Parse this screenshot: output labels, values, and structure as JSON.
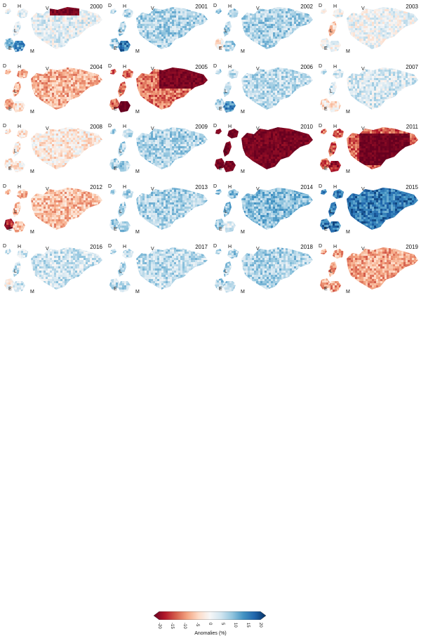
{
  "figure": {
    "region_labels": [
      "D",
      "H",
      "V",
      "L",
      "E",
      "M"
    ],
    "panels": [
      {
        "year": "2000",
        "anomaly": -0.1,
        "hot": "V-top",
        "hot_value": 0.95,
        "region_bias": {
          "M": -0.5,
          "E": -0.3
        }
      },
      {
        "year": "2001",
        "anomaly": -0.3,
        "hot": "none",
        "hot_value": 0.0,
        "region_bias": {
          "M": -0.4
        }
      },
      {
        "year": "2002",
        "anomaly": -0.3,
        "hot": "none",
        "hot_value": 0.0,
        "region_bias": {
          "E": 0.4
        }
      },
      {
        "year": "2003",
        "anomaly": -0.05,
        "hot": "none",
        "hot_value": 0.0,
        "region_bias": {
          "L": 0.3
        }
      },
      {
        "year": "2004",
        "anomaly": 0.35,
        "hot": "none",
        "hot_value": 0.0,
        "region_bias": {
          "M": -0.2
        }
      },
      {
        "year": "2005",
        "anomaly": 0.55,
        "hot": "V-band",
        "hot_value": 0.95,
        "region_bias": {
          "M": 0.6
        }
      },
      {
        "year": "2006",
        "anomaly": -0.25,
        "hot": "none",
        "hot_value": 0.0,
        "region_bias": {
          "M": -0.4
        }
      },
      {
        "year": "2007",
        "anomaly": -0.15,
        "hot": "none",
        "hot_value": 0.0,
        "region_bias": {
          "E": 0.3,
          "M": 0.3
        }
      },
      {
        "year": "2008",
        "anomaly": 0.1,
        "hot": "none",
        "hot_value": 0.0,
        "region_bias": {}
      },
      {
        "year": "2009",
        "anomaly": -0.3,
        "hot": "none",
        "hot_value": 0.0,
        "region_bias": {}
      },
      {
        "year": "2010",
        "anomaly": 0.75,
        "hot": "all",
        "hot_value": 0.95,
        "region_bias": {}
      },
      {
        "year": "2011",
        "anomaly": 0.6,
        "hot": "center",
        "hot_value": 0.98,
        "region_bias": {
          "M": 0.2
        }
      },
      {
        "year": "2012",
        "anomaly": 0.3,
        "hot": "none",
        "hot_value": 0.0,
        "region_bias": {
          "E": 0.5
        }
      },
      {
        "year": "2013",
        "anomaly": -0.3,
        "hot": "none",
        "hot_value": 0.0,
        "region_bias": {}
      },
      {
        "year": "2014",
        "anomaly": -0.4,
        "hot": "none",
        "hot_value": 0.0,
        "region_bias": {
          "M": 0.3
        }
      },
      {
        "year": "2015",
        "anomaly": -0.7,
        "hot": "none",
        "hot_value": 0.0,
        "region_bias": {}
      },
      {
        "year": "2016",
        "anomaly": -0.2,
        "hot": "none",
        "hot_value": 0.0,
        "region_bias": {
          "E": 0.2
        }
      },
      {
        "year": "2017",
        "anomaly": -0.25,
        "hot": "none",
        "hot_value": 0.0,
        "region_bias": {}
      },
      {
        "year": "2018",
        "anomaly": -0.3,
        "hot": "none",
        "hot_value": 0.0,
        "region_bias": {}
      },
      {
        "year": "2019",
        "anomaly": 0.4,
        "hot": "none",
        "hot_value": 0.0,
        "region_bias": {}
      }
    ]
  },
  "legend": {
    "title": "Anomalies (%)",
    "ticks": [
      "-20",
      "-15",
      "-10",
      "-5",
      "0",
      "5",
      "10",
      "15",
      "20"
    ],
    "range": [
      -20,
      20
    ],
    "colors": [
      "#67001f",
      "#b2182b",
      "#d6604d",
      "#f4a582",
      "#fddbc7",
      "#f7f7f7",
      "#d1e5f0",
      "#92c5de",
      "#4393c3",
      "#2166ac",
      "#053061"
    ]
  }
}
